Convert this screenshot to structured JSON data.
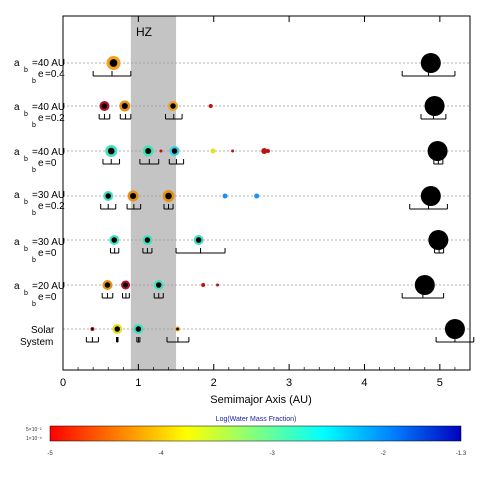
{
  "chart_data": {
    "type": "scatter",
    "xlabel": "Semimajor Axis (AU)",
    "xlim": [
      0,
      5.4
    ],
    "xticks": [
      0,
      1,
      2,
      3,
      4,
      5
    ],
    "hz_label": "HZ",
    "hz_range": [
      0.9,
      1.5
    ],
    "rows": [
      {
        "label_lines": [
          "a",
          "b",
          "=40 AU",
          "e",
          "b",
          "=0.4"
        ],
        "label": "a_b=40 AU e_b=0.4",
        "planets": [
          {
            "a": 0.67,
            "size": 7,
            "color": "#f4a21a",
            "kind": "planet"
          },
          {
            "a": 4.88,
            "size": 10,
            "color": "#000000",
            "kind": "giant"
          }
        ],
        "ranges": [
          {
            "min": 0.4,
            "max": 0.9
          },
          {
            "min": 4.5,
            "max": 5.2
          }
        ]
      },
      {
        "label": "a_b=40 AU e_b=0.2",
        "planets": [
          {
            "a": 0.55,
            "size": 5,
            "color": "#b4102a",
            "kind": "planet"
          },
          {
            "a": 0.82,
            "size": 5.5,
            "color": "#e8900f",
            "kind": "planet"
          },
          {
            "a": 1.46,
            "size": 5,
            "color": "#f0a020",
            "kind": "planet"
          },
          {
            "a": 1.96,
            "size": 2,
            "color": "#c41010",
            "kind": "embryo"
          },
          {
            "a": 4.93,
            "size": 10,
            "color": "#000000",
            "kind": "giant"
          }
        ],
        "ranges": [
          {
            "min": 0.48,
            "max": 0.62
          },
          {
            "min": 0.76,
            "max": 0.9
          },
          {
            "min": 1.36,
            "max": 1.58
          },
          {
            "min": 4.75,
            "max": 5.08
          }
        ]
      },
      {
        "label": "a_b=40 AU e_b=0",
        "planets": [
          {
            "a": 0.64,
            "size": 6,
            "color": "#40e0c0",
            "kind": "planet"
          },
          {
            "a": 1.13,
            "size": 5.5,
            "color": "#40e0b8",
            "kind": "planet"
          },
          {
            "a": 1.3,
            "size": 1.5,
            "color": "#c01010",
            "kind": "embryo"
          },
          {
            "a": 1.48,
            "size": 5,
            "color": "#30d0e8",
            "kind": "planet"
          },
          {
            "a": 1.99,
            "size": 2.5,
            "color": "#e8e020",
            "kind": "embryo"
          },
          {
            "a": 2.25,
            "size": 1.5,
            "color": "#c01010",
            "kind": "embryo"
          },
          {
            "a": 2.67,
            "size": 3,
            "color": "#c01010",
            "kind": "embryo"
          },
          {
            "a": 2.72,
            "size": 2,
            "color": "#c01010",
            "kind": "embryo"
          },
          {
            "a": 4.97,
            "size": 10,
            "color": "#000000",
            "kind": "giant"
          }
        ],
        "ranges": [
          {
            "min": 0.53,
            "max": 0.75
          },
          {
            "min": 1.02,
            "max": 1.27
          },
          {
            "min": 1.41,
            "max": 1.6
          },
          {
            "min": 4.92,
            "max": 5.04
          }
        ]
      },
      {
        "label": "a_b=30 AU e_b=0.2",
        "planets": [
          {
            "a": 0.6,
            "size": 5,
            "color": "#40e0c0",
            "kind": "planet"
          },
          {
            "a": 0.93,
            "size": 5.5,
            "color": "#e8900f",
            "kind": "planet"
          },
          {
            "a": 1.4,
            "size": 6,
            "color": "#e8900f",
            "kind": "planet"
          },
          {
            "a": 2.15,
            "size": 2.5,
            "color": "#2090e8",
            "kind": "embryo"
          },
          {
            "a": 2.57,
            "size": 2.5,
            "color": "#2090e8",
            "kind": "embryo"
          },
          {
            "a": 4.88,
            "size": 10,
            "color": "#000000",
            "kind": "giant"
          }
        ],
        "ranges": [
          {
            "min": 0.5,
            "max": 0.7
          },
          {
            "min": 0.85,
            "max": 1.03
          },
          {
            "min": 1.34,
            "max": 1.46
          },
          {
            "min": 4.6,
            "max": 5.1
          }
        ]
      },
      {
        "label": "a_b=30 AU e_b=0",
        "planets": [
          {
            "a": 0.68,
            "size": 5,
            "color": "#40e0c0",
            "kind": "planet"
          },
          {
            "a": 1.12,
            "size": 5,
            "color": "#40e0c0",
            "kind": "planet"
          },
          {
            "a": 1.8,
            "size": 5,
            "color": "#40e0c0",
            "kind": "planet"
          },
          {
            "a": 4.98,
            "size": 10,
            "color": "#000000",
            "kind": "giant"
          }
        ],
        "ranges": [
          {
            "min": 0.63,
            "max": 0.74
          },
          {
            "min": 1.06,
            "max": 1.18
          },
          {
            "min": 1.5,
            "max": 2.15
          },
          {
            "min": 4.93,
            "max": 5.05
          }
        ]
      },
      {
        "label": "a_b=20 AU e_b=0",
        "planets": [
          {
            "a": 0.59,
            "size": 5,
            "color": "#e8900f",
            "kind": "planet"
          },
          {
            "a": 0.83,
            "size": 4.5,
            "color": "#b4102a",
            "kind": "planet"
          },
          {
            "a": 1.27,
            "size": 5,
            "color": "#40e0c0",
            "kind": "planet"
          },
          {
            "a": 1.86,
            "size": 2,
            "color": "#c01010",
            "kind": "embryo"
          },
          {
            "a": 2.05,
            "size": 1.5,
            "color": "#c01010",
            "kind": "embryo"
          },
          {
            "a": 4.8,
            "size": 10,
            "color": "#000000",
            "kind": "giant"
          }
        ],
        "ranges": [
          {
            "min": 0.52,
            "max": 0.66
          },
          {
            "min": 0.79,
            "max": 0.88
          },
          {
            "min": 1.21,
            "max": 1.33
          },
          {
            "min": 4.5,
            "max": 5.05
          }
        ]
      },
      {
        "label": "Solar System",
        "planets": [
          {
            "a": 0.39,
            "size": 2,
            "color": "#b4102a",
            "kind": "planet"
          },
          {
            "a": 0.72,
            "size": 5,
            "color": "#e8e020",
            "kind": "planet"
          },
          {
            "a": 1.0,
            "size": 5,
            "color": "#40e0c0",
            "kind": "planet"
          },
          {
            "a": 1.52,
            "size": 2.5,
            "color": "#f0a020",
            "kind": "planet"
          },
          {
            "a": 5.2,
            "size": 10,
            "color": "#000000",
            "kind": "giant"
          }
        ],
        "ranges": [
          {
            "min": 0.31,
            "max": 0.47
          },
          {
            "min": 0.71,
            "max": 0.73
          },
          {
            "min": 0.98,
            "max": 1.02
          },
          {
            "min": 1.38,
            "max": 1.67
          },
          {
            "min": 4.95,
            "max": 5.45
          }
        ]
      }
    ],
    "colorbar": {
      "title": "Log(Water Mass Fraction)",
      "range": [
        -5,
        -1.3
      ],
      "ticks": [
        "-5",
        "-4",
        "-3",
        "-2",
        "-1.3"
      ],
      "tick_values": [
        -5,
        -4,
        -3,
        -2,
        -1.3
      ],
      "left_labels": [
        "5×10⁻²",
        "1×10⁻⁵"
      ],
      "stops": [
        "#ff0000",
        "#ff8000",
        "#ffff00",
        "#80ff80",
        "#00ffff",
        "#0080ff",
        "#0000c0"
      ]
    }
  }
}
